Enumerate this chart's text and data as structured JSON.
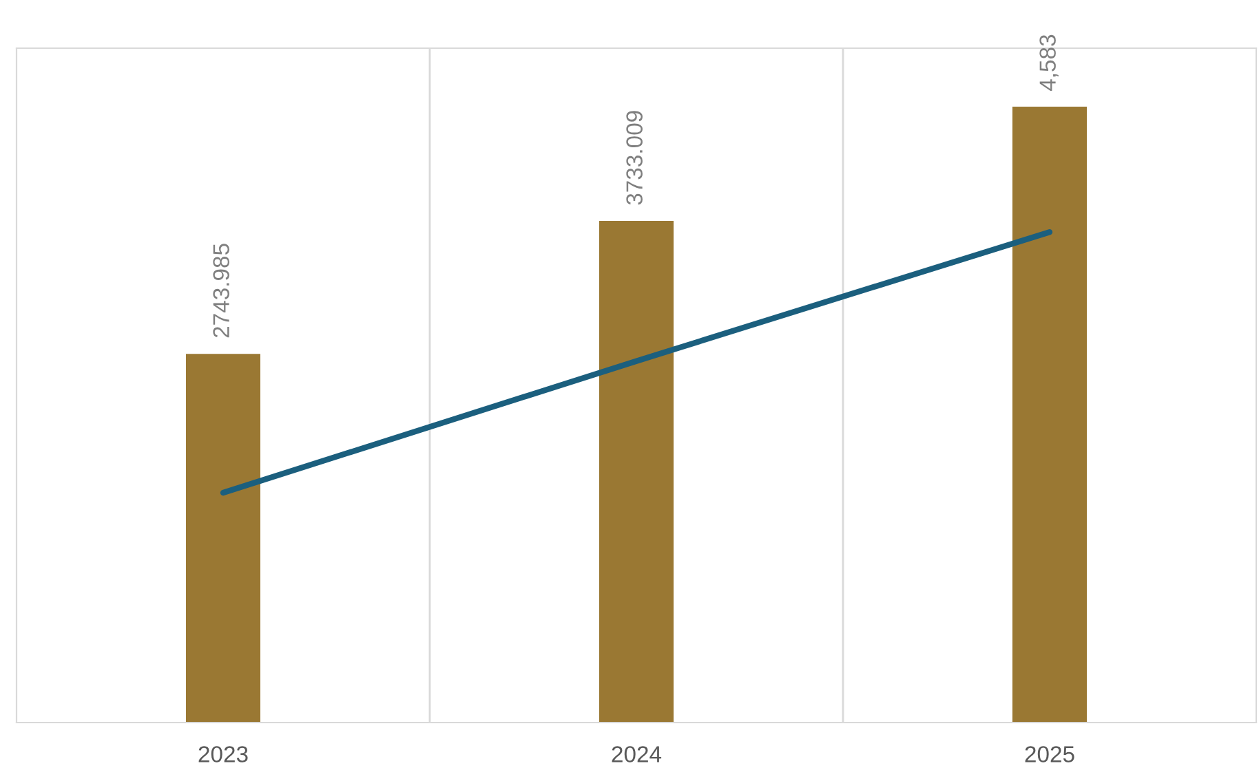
{
  "chart_data": {
    "type": "bar",
    "categories": [
      "2023",
      "2024",
      "2025"
    ],
    "series": [
      {
        "color": "#9a7833",
        "values": [
          2743.985,
          3733.009,
          4583
        ],
        "value_labels": [
          "2743.985",
          "3733.009",
          "4,583"
        ]
      },
      {
        "type": "line",
        "color": "#1b5f7e",
        "values": [
          1710,
          2690,
          3650
        ]
      }
    ],
    "grid": "x",
    "legend": false
  }
}
